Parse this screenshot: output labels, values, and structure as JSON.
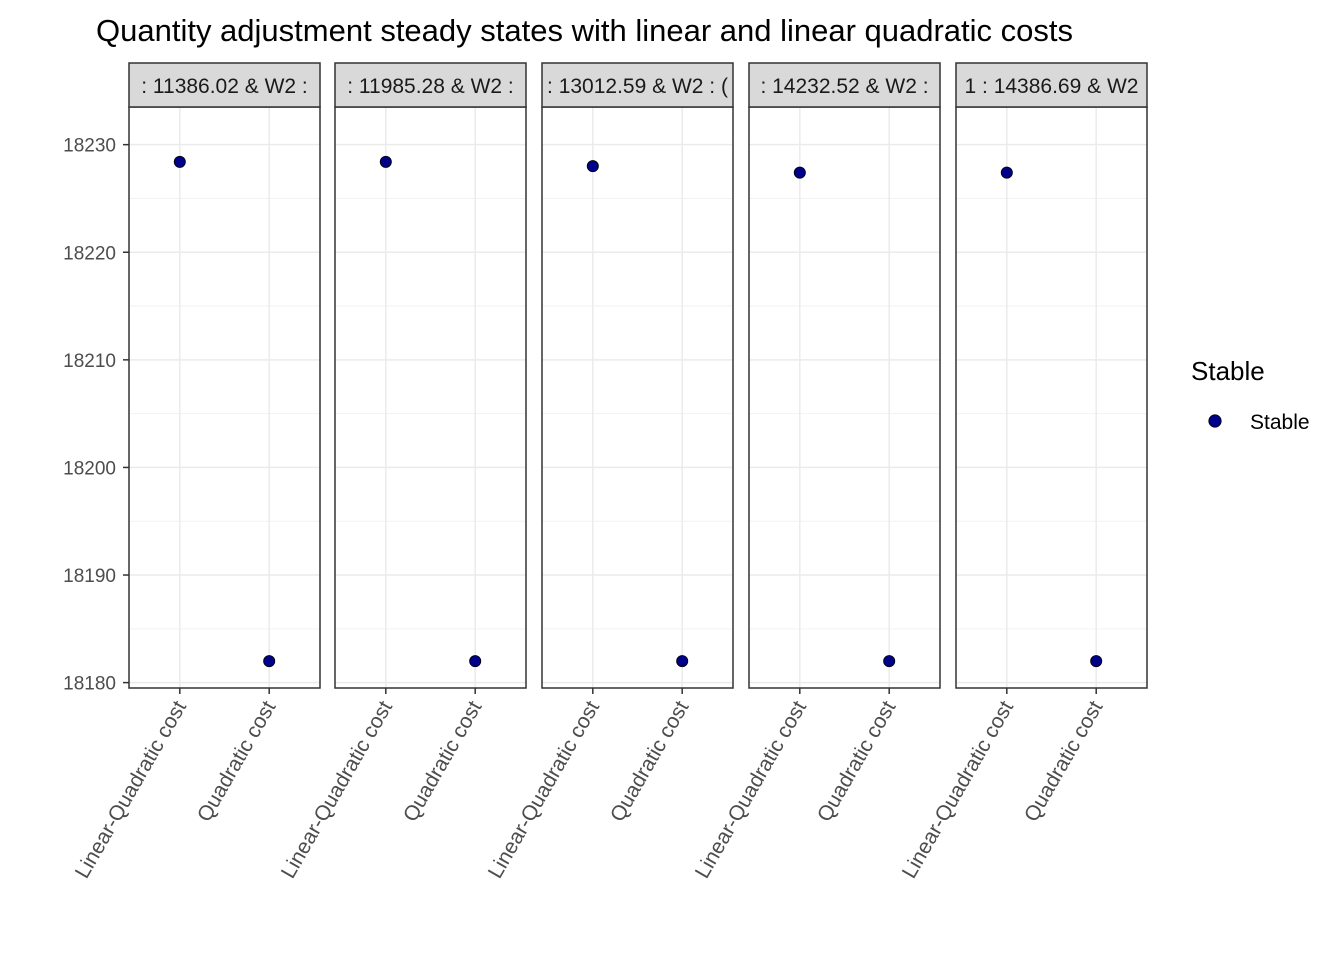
{
  "chart_data": {
    "type": "scatter",
    "title": "Quantity adjustment steady states with linear and linear quadratic costs",
    "xlabel": "",
    "ylabel": "",
    "categories": [
      "Linear-Quadratic cost",
      "Quadratic cost"
    ],
    "ylim": [
      18179.5,
      18233.5
    ],
    "yticks": [
      18180,
      18190,
      18200,
      18210,
      18220,
      18230
    ],
    "grid": true,
    "legend": {
      "title": "Stable",
      "position": "right",
      "entries": [
        {
          "label": "Stable",
          "color": "#00008b"
        }
      ]
    },
    "point_color": "#00008b",
    "facets": [
      {
        "strip": ": 11386.02 & W2 :",
        "values": [
          18228.4,
          18182.0
        ]
      },
      {
        "strip": ": 11985.28 & W2 :",
        "values": [
          18228.4,
          18182.0
        ]
      },
      {
        "strip": ": 13012.59 & W2 : (",
        "values": [
          18228.0,
          18182.0
        ]
      },
      {
        "strip": ": 14232.52 & W2 :",
        "values": [
          18227.4,
          18182.0
        ]
      },
      {
        "strip": "1 : 14386.69 & W2",
        "values": [
          18227.4,
          18182.0
        ]
      }
    ]
  }
}
